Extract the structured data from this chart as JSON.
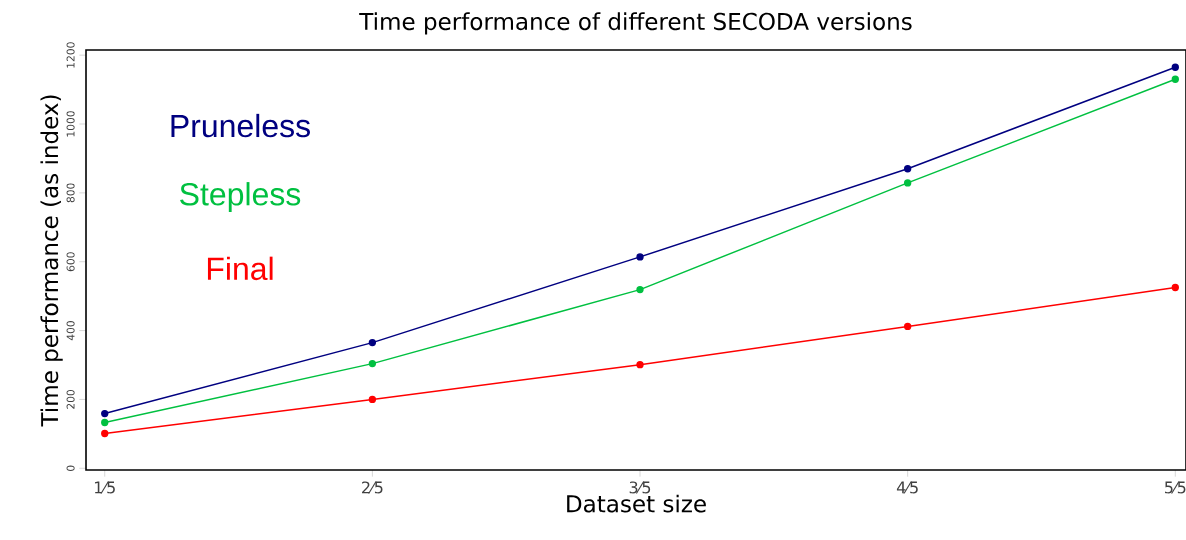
{
  "chart_data": {
    "type": "line",
    "title": "Time performance of different SECODA versions",
    "xlabel": "Dataset size",
    "ylabel": "Time performance (as index)",
    "categories": [
      "1⁄5",
      "2⁄5",
      "3⁄5",
      "4⁄5",
      "5⁄5"
    ],
    "series": [
      {
        "name": "Pruneless",
        "color": "#000080",
        "values": [
          159,
          365,
          614,
          870,
          1165
        ]
      },
      {
        "name": "Stepless",
        "color": "#00c040",
        "values": [
          133,
          304,
          519,
          829,
          1130
        ]
      },
      {
        "name": "Final",
        "color": "#ff0000",
        "values": [
          101,
          200,
          301,
          412,
          525
        ]
      }
    ],
    "ylim": [
      -5,
      1215
    ],
    "yticks": [
      0,
      200,
      400,
      600,
      800,
      1000,
      1200
    ],
    "marker": "circle",
    "line_style": "solid",
    "grid": false,
    "legend": false
  }
}
